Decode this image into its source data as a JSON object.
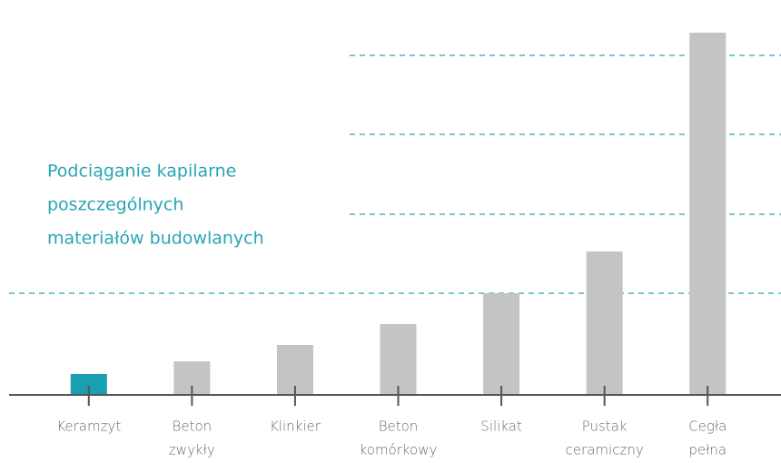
{
  "chart_data": {
    "type": "bar",
    "title": [
      "Podciąganie kapilarne",
      "poszczególnych",
      "materiałów budowlanych"
    ],
    "categories": [
      [
        "Keramzyt"
      ],
      [
        "Beton",
        "zwykły"
      ],
      [
        "Klinkier"
      ],
      [
        "Beton",
        "komórkowy"
      ],
      [
        "Silikat"
      ],
      [
        "Pustak",
        "ceramiczny"
      ],
      [
        "Cegła",
        "pełna"
      ]
    ],
    "values": [
      23,
      37,
      55,
      78,
      112,
      158,
      399
    ],
    "colors": [
      "#1a9fb0",
      "#c4c4c4",
      "#c4c4c4",
      "#c4c4c4",
      "#c4c4c4",
      "#c4c4c4",
      "#c4c4c4"
    ],
    "ylim": [
      0,
      400
    ],
    "yticks": [
      112,
      199,
      287,
      374
    ],
    "grid": true
  }
}
